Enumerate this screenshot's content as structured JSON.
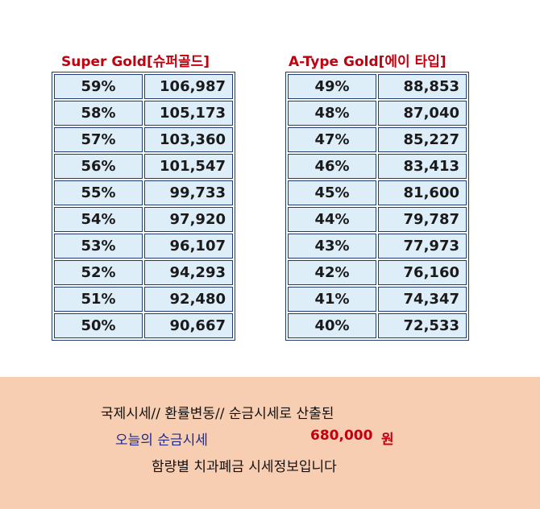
{
  "left_table": {
    "title": "Super Gold[슈퍼골드]",
    "rows": [
      {
        "pct": "59%",
        "price": "106,987"
      },
      {
        "pct": "58%",
        "price": "105,173"
      },
      {
        "pct": "57%",
        "price": "103,360"
      },
      {
        "pct": "56%",
        "price": "101,547"
      },
      {
        "pct": "55%",
        "price": "99,733"
      },
      {
        "pct": "54%",
        "price": "97,920"
      },
      {
        "pct": "53%",
        "price": "96,107"
      },
      {
        "pct": "52%",
        "price": "94,293"
      },
      {
        "pct": "51%",
        "price": "92,480"
      },
      {
        "pct": "50%",
        "price": "90,667"
      }
    ]
  },
  "right_table": {
    "title": "A-Type Gold[에이 타입]",
    "rows": [
      {
        "pct": "49%",
        "price": "88,853"
      },
      {
        "pct": "48%",
        "price": "87,040"
      },
      {
        "pct": "47%",
        "price": "85,227"
      },
      {
        "pct": "46%",
        "price": "83,413"
      },
      {
        "pct": "45%",
        "price": "81,600"
      },
      {
        "pct": "44%",
        "price": "79,787"
      },
      {
        "pct": "43%",
        "price": "77,973"
      },
      {
        "pct": "42%",
        "price": "76,160"
      },
      {
        "pct": "41%",
        "price": "74,347"
      },
      {
        "pct": "40%",
        "price": "72,533"
      }
    ]
  },
  "info": {
    "line1": "국제시세// 환률변동// 순금시세로 산출된",
    "line2_label": "오늘의 순금시세",
    "line2_price": "680,000",
    "line2_unit": "원",
    "line3": "함량별 치과폐금 시세정보입니다"
  },
  "colors": {
    "title_red": "#c0000f",
    "cell_bg": "#deeef9",
    "border_navy": "#1f3b73",
    "panel_bg": "#f8ceb3",
    "label_blue": "#1f2a8a"
  }
}
